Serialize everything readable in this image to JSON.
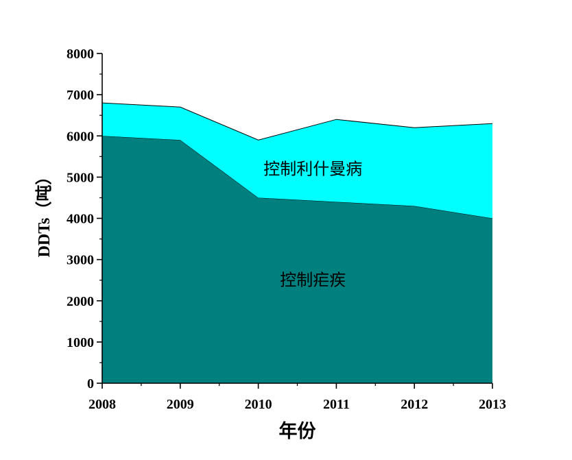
{
  "chart_data": {
    "type": "area",
    "stacked": true,
    "x": [
      2008,
      2009,
      2010,
      2011,
      2012,
      2013
    ],
    "series": [
      {
        "name": "控制疟疾",
        "values": [
          6000,
          5900,
          4500,
          4400,
          4300,
          4000
        ],
        "color": "#007f7f"
      },
      {
        "name": "控制利什曼病",
        "values": [
          800,
          800,
          1400,
          2000,
          1900,
          2300
        ],
        "color": "#00ffff"
      }
    ],
    "xlabel": "年份",
    "ylabel": "DDTs（吨）",
    "xlim": [
      2008,
      2013
    ],
    "ylim": [
      0,
      8000
    ],
    "yticks": [
      0,
      1000,
      2000,
      3000,
      4000,
      5000,
      6000,
      7000,
      8000
    ],
    "xticks": [
      2008,
      2009,
      2010,
      2011,
      2012,
      2013
    ],
    "grid": false,
    "legend": "none"
  }
}
